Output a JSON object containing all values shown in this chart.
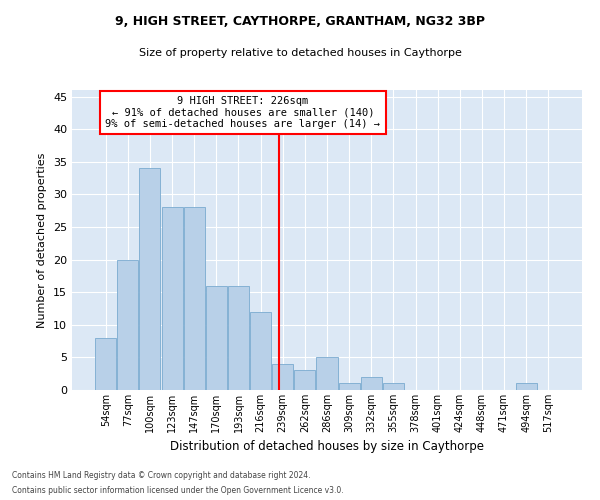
{
  "title": "9, HIGH STREET, CAYTHORPE, GRANTHAM, NG32 3BP",
  "subtitle": "Size of property relative to detached houses in Caythorpe",
  "xlabel": "Distribution of detached houses by size in Caythorpe",
  "ylabel": "Number of detached properties",
  "bar_color": "#b8d0e8",
  "bar_edge_color": "#7aaad0",
  "background_color": "#dce8f5",
  "categories": [
    "54sqm",
    "77sqm",
    "100sqm",
    "123sqm",
    "147sqm",
    "170sqm",
    "193sqm",
    "216sqm",
    "239sqm",
    "262sqm",
    "286sqm",
    "309sqm",
    "332sqm",
    "355sqm",
    "378sqm",
    "401sqm",
    "424sqm",
    "448sqm",
    "471sqm",
    "494sqm",
    "517sqm"
  ],
  "values": [
    8,
    20,
    34,
    28,
    28,
    16,
    16,
    12,
    4,
    3,
    5,
    1,
    2,
    1,
    0,
    0,
    0,
    0,
    0,
    1,
    0
  ],
  "annotation_title": "9 HIGH STREET: 226sqm",
  "annotation_line1": "← 91% of detached houses are smaller (140)",
  "annotation_line2": "9% of semi-detached houses are larger (14) →",
  "ylim": [
    0,
    46
  ],
  "yticks": [
    0,
    5,
    10,
    15,
    20,
    25,
    30,
    35,
    40,
    45
  ],
  "property_line_idx": 7.85,
  "footer_line1": "Contains HM Land Registry data © Crown copyright and database right 2024.",
  "footer_line2": "Contains public sector information licensed under the Open Government Licence v3.0."
}
